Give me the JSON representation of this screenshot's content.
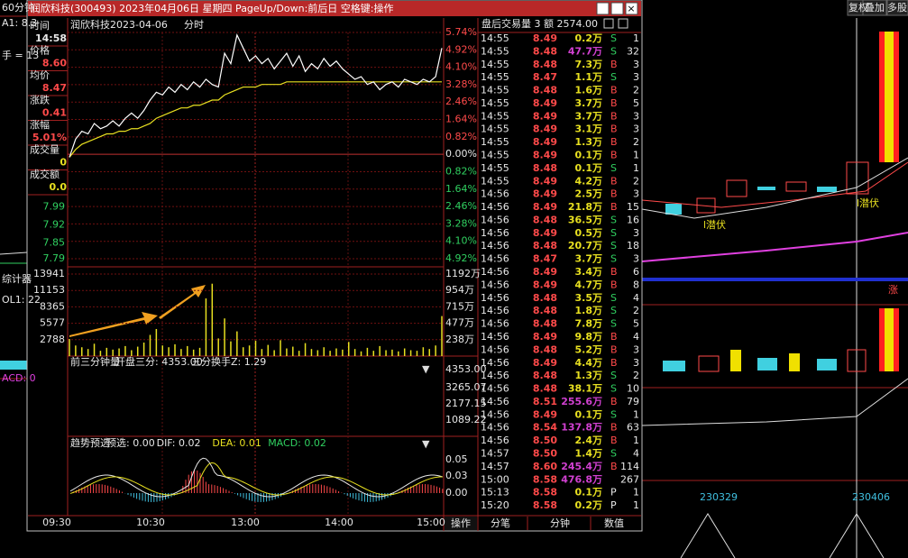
{
  "window": {
    "title": "润欣科技(300493) 2023年04月06日 星期四 PageUp/Down:前后日 空格键:操作",
    "stock": "润欣科技",
    "date": "2023-04-06",
    "mode": "分时"
  },
  "info": [
    {
      "label": "时间",
      "value": "14:58",
      "color": "#e8e8e8"
    },
    {
      "label": "价格",
      "value": "8.60",
      "color": "#ff4a4a"
    },
    {
      "label": "均价",
      "value": "8.47",
      "color": "#ff4a4a"
    },
    {
      "label": "涨跌",
      "value": "0.41",
      "color": "#ff4a4a"
    },
    {
      "label": "涨幅",
      "value": "5.01%",
      "color": "#ff4a4a"
    },
    {
      "label": "成交量",
      "value": "0",
      "color": "#e8e020"
    },
    {
      "label": "成交额",
      "value": "0.0",
      "color": "#e8e020"
    }
  ],
  "intraday": {
    "type": "line",
    "ylim": [
      7.79,
      8.66
    ],
    "price_color": "#ffffff",
    "avg_color": "#e8e020",
    "price_axis_left": [
      7.99,
      7.92,
      7.85,
      7.79
    ],
    "pct_axis": [
      "5.74%",
      "4.92%",
      "4.10%",
      "3.28%",
      "2.46%",
      "1.64%",
      "0.82%",
      "0.00%",
      "0.82%",
      "1.64%",
      "2.46%",
      "3.28%",
      "4.10%",
      "4.92%"
    ],
    "pct_colors": [
      "#ff4a4a",
      "#ff4a4a",
      "#ff4a4a",
      "#ff4a4a",
      "#ff4a4a",
      "#ff4a4a",
      "#ff4a4a",
      "#e8e8e8",
      "#30d060",
      "#30d060",
      "#30d060",
      "#30d060",
      "#30d060",
      "#30d060"
    ],
    "price": [
      8.18,
      8.25,
      8.28,
      8.27,
      8.31,
      8.29,
      8.3,
      8.32,
      8.3,
      8.33,
      8.35,
      8.33,
      8.36,
      8.4,
      8.43,
      8.42,
      8.45,
      8.43,
      8.46,
      8.44,
      8.47,
      8.45,
      8.48,
      8.46,
      8.45,
      8.58,
      8.54,
      8.65,
      8.6,
      8.55,
      8.57,
      8.54,
      8.56,
      8.52,
      8.55,
      8.58,
      8.53,
      8.57,
      8.51,
      8.54,
      8.52,
      8.56,
      8.53,
      8.55,
      8.52,
      8.5,
      8.48,
      8.49,
      8.46,
      8.47,
      8.44,
      8.46,
      8.47,
      8.45,
      8.48,
      8.47,
      8.46,
      8.48,
      8.47,
      8.49,
      8.6
    ],
    "avg": [
      8.18,
      8.21,
      8.23,
      8.24,
      8.25,
      8.26,
      8.27,
      8.27,
      8.28,
      8.28,
      8.29,
      8.29,
      8.3,
      8.31,
      8.33,
      8.34,
      8.35,
      8.36,
      8.37,
      8.37,
      8.38,
      8.38,
      8.39,
      8.4,
      8.4,
      8.42,
      8.43,
      8.44,
      8.45,
      8.45,
      8.45,
      8.46,
      8.46,
      8.46,
      8.46,
      8.47,
      8.47,
      8.47,
      8.47,
      8.47,
      8.47,
      8.47,
      8.47,
      8.47,
      8.47,
      8.47,
      8.47,
      8.47,
      8.47,
      8.47,
      8.47,
      8.47,
      8.47,
      8.47,
      8.47,
      8.47,
      8.47,
      8.47,
      8.47,
      8.47,
      8.47
    ],
    "vol_ylim": [
      0,
      13941
    ],
    "vol_color": "#e8e020",
    "volume": [
      2900,
      1800,
      1500,
      1200,
      2100,
      900,
      1400,
      1100,
      1300,
      1700,
      1000,
      1600,
      2300,
      3600,
      4600,
      1800,
      1500,
      2000,
      1200,
      1700,
      1100,
      1400,
      9800,
      12300,
      3000,
      6400,
      2500,
      4200,
      1500,
      1800,
      2600,
      1200,
      1900,
      1000,
      2700,
      1300,
      1600,
      900,
      2200,
      1200,
      1000,
      1500,
      900,
      1300,
      1100,
      2400,
      1200,
      800,
      1400,
      900,
      1700,
      1000,
      1100,
      800,
      1300,
      1000,
      900,
      1500,
      1200,
      1800,
      6800
    ],
    "vol_axis_left": [
      13941,
      11153,
      8365,
      5577,
      2788
    ],
    "vol_axis_right": [
      "1192万",
      "954万",
      "715万",
      "477万",
      "238万"
    ],
    "time_axis": [
      "09:30",
      "10:30",
      "13:00",
      "14:00",
      "15:00"
    ]
  },
  "indicator1": {
    "title": "前三分钟量",
    "text": "开盘三分: 4353.00",
    "text2": "三分换手Z: 1.29",
    "axis": [
      "4353.00",
      "3265.07",
      "2177.15",
      "1089.22"
    ]
  },
  "macd": {
    "title": "趋势预选",
    "items": [
      "预选: 0.00",
      "DIF: 0.02",
      "DEA: 0.01",
      "MACD: 0.02"
    ],
    "item_colors": [
      "#e8e8e8",
      "#e8e8e8",
      "#e8e020",
      "#30d060"
    ],
    "axis": [
      "0.05",
      "0.03",
      "0.00"
    ]
  },
  "button": "操作",
  "trades": {
    "header": "盘后交易量 3 额 2574.00",
    "rows": [
      {
        "time": "14:55",
        "price": "8.49",
        "vol": "0.2万",
        "side": "S",
        "count": "1",
        "vol_color": "#e8e020"
      },
      {
        "time": "14:55",
        "price": "8.48",
        "vol": "47.7万",
        "side": "S",
        "count": "32",
        "vol_color": "#d040d0"
      },
      {
        "time": "14:55",
        "price": "8.48",
        "vol": "7.3万",
        "side": "B",
        "count": "3",
        "vol_color": "#e8e020"
      },
      {
        "time": "14:55",
        "price": "8.47",
        "vol": "1.1万",
        "side": "S",
        "count": "3",
        "vol_color": "#e8e020"
      },
      {
        "time": "14:55",
        "price": "8.48",
        "vol": "1.6万",
        "side": "B",
        "count": "2",
        "vol_color": "#e8e020"
      },
      {
        "time": "14:55",
        "price": "8.49",
        "vol": "3.7万",
        "side": "B",
        "count": "5",
        "vol_color": "#e8e020"
      },
      {
        "time": "14:55",
        "price": "8.49",
        "vol": "3.7万",
        "side": "B",
        "count": "3",
        "vol_color": "#e8e020"
      },
      {
        "time": "14:55",
        "price": "8.49",
        "vol": "3.1万",
        "side": "B",
        "count": "3",
        "vol_color": "#e8e020"
      },
      {
        "time": "14:55",
        "price": "8.49",
        "vol": "1.3万",
        "side": "B",
        "count": "2",
        "vol_color": "#e8e020"
      },
      {
        "time": "14:55",
        "price": "8.49",
        "vol": "0.1万",
        "side": "B",
        "count": "1",
        "vol_color": "#e8e020"
      },
      {
        "time": "14:55",
        "price": "8.48",
        "vol": "0.1万",
        "side": "S",
        "count": "1",
        "vol_color": "#e8e020"
      },
      {
        "time": "14:55",
        "price": "8.49",
        "vol": "4.2万",
        "side": "B",
        "count": "2",
        "vol_color": "#e8e020"
      },
      {
        "time": "14:56",
        "price": "8.49",
        "vol": "2.5万",
        "side": "B",
        "count": "3",
        "vol_color": "#e8e020"
      },
      {
        "time": "14:56",
        "price": "8.49",
        "vol": "21.8万",
        "side": "B",
        "count": "15",
        "vol_color": "#e8e020"
      },
      {
        "time": "14:56",
        "price": "8.48",
        "vol": "36.5万",
        "side": "S",
        "count": "16",
        "vol_color": "#e8e020"
      },
      {
        "time": "14:56",
        "price": "8.49",
        "vol": "0.5万",
        "side": "S",
        "count": "3",
        "vol_color": "#e8e020"
      },
      {
        "time": "14:56",
        "price": "8.48",
        "vol": "20.7万",
        "side": "S",
        "count": "18",
        "vol_color": "#e8e020"
      },
      {
        "time": "14:56",
        "price": "8.47",
        "vol": "3.7万",
        "side": "S",
        "count": "3",
        "vol_color": "#e8e020"
      },
      {
        "time": "14:56",
        "price": "8.49",
        "vol": "3.4万",
        "side": "B",
        "count": "6",
        "vol_color": "#e8e020"
      },
      {
        "time": "14:56",
        "price": "8.49",
        "vol": "4.7万",
        "side": "B",
        "count": "8",
        "vol_color": "#e8e020"
      },
      {
        "time": "14:56",
        "price": "8.48",
        "vol": "3.5万",
        "side": "S",
        "count": "4",
        "vol_color": "#e8e020"
      },
      {
        "time": "14:56",
        "price": "8.48",
        "vol": "1.8万",
        "side": "S",
        "count": "2",
        "vol_color": "#e8e020"
      },
      {
        "time": "14:56",
        "price": "8.48",
        "vol": "7.8万",
        "side": "S",
        "count": "5",
        "vol_color": "#e8e020"
      },
      {
        "time": "14:56",
        "price": "8.49",
        "vol": "9.8万",
        "side": "B",
        "count": "4",
        "vol_color": "#e8e020"
      },
      {
        "time": "14:56",
        "price": "8.48",
        "vol": "5.2万",
        "side": "B",
        "count": "3",
        "vol_color": "#e8e020"
      },
      {
        "time": "14:56",
        "price": "8.49",
        "vol": "4.4万",
        "side": "B",
        "count": "3",
        "vol_color": "#e8e020"
      },
      {
        "time": "14:56",
        "price": "8.48",
        "vol": "1.3万",
        "side": "S",
        "count": "2",
        "vol_color": "#e8e020"
      },
      {
        "time": "14:56",
        "price": "8.48",
        "vol": "38.1万",
        "side": "S",
        "count": "10",
        "vol_color": "#e8e020"
      },
      {
        "time": "14:56",
        "price": "8.51",
        "vol": "255.6万",
        "side": "B",
        "count": "79",
        "vol_color": "#d040d0"
      },
      {
        "time": "14:56",
        "price": "8.49",
        "vol": "0.1万",
        "side": "S",
        "count": "1",
        "vol_color": "#e8e020"
      },
      {
        "time": "14:56",
        "price": "8.54",
        "vol": "137.8万",
        "side": "B",
        "count": "63",
        "vol_color": "#d040d0"
      },
      {
        "time": "14:56",
        "price": "8.50",
        "vol": "2.4万",
        "side": "B",
        "count": "1",
        "vol_color": "#e8e020"
      },
      {
        "time": "14:57",
        "price": "8.50",
        "vol": "1.4万",
        "side": "S",
        "count": "4",
        "vol_color": "#e8e020"
      },
      {
        "time": "14:57",
        "price": "8.60",
        "vol": "245.4万",
        "side": "B",
        "count": "114",
        "vol_color": "#d040d0"
      },
      {
        "time": "15:00",
        "price": "8.58",
        "vol": "476.8万",
        "count": "267",
        "vol_color": "#d040d0"
      },
      {
        "time": "15:13",
        "price": "8.58",
        "vol": "0.1万",
        "side": "P",
        "count": "1",
        "vol_color": "#e8e020"
      },
      {
        "time": "15:20",
        "price": "8.58",
        "vol": "0.2万",
        "side": "P",
        "count": "1",
        "vol_color": "#e8e020"
      }
    ],
    "side_colors": {
      "B": "#ff4a4a",
      "S": "#30d060",
      "P": "#e8e8e8"
    },
    "tabs": [
      "分笔",
      "分钟",
      "数值"
    ]
  },
  "background": {
    "toolbar": [
      "复权",
      "叠加",
      "多股"
    ],
    "left_labels": [
      "60分钟",
      "A1: 8.3",
      "手 = 13",
      "综计器",
      "OL1: 22",
      "ACD: 0"
    ],
    "annotations": [
      "l潜伏",
      "l潜伏",
      "涨"
    ],
    "dates": [
      "230329",
      "230406"
    ]
  }
}
